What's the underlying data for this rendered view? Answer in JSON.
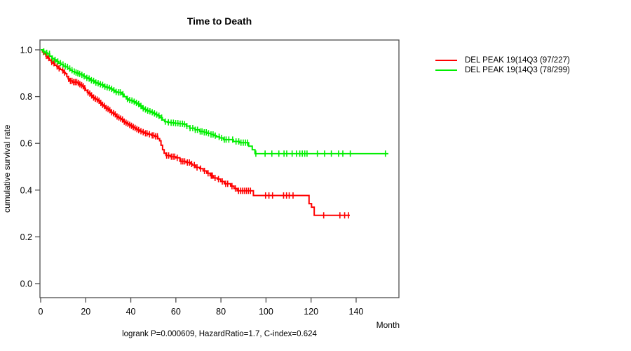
{
  "title": "Time to Death",
  "y_axis": {
    "label": "cumulative survival rate"
  },
  "x_axis": {
    "label": "Month"
  },
  "footer": "logrank P=0.000609, HazardRatio=1.7, C-index=0.624",
  "legend": [
    {
      "label": "DEL PEAK 19(14Q3 (97/227)",
      "color": "#ff0000"
    },
    {
      "label": "DEL PEAK 19(14Q3 (78/299)",
      "color": "#00ee00"
    }
  ],
  "colors": {
    "axis": "#4d4d4d",
    "text": "#000000",
    "background": "#ffffff"
  },
  "chart_data": {
    "type": "line",
    "subtype": "kaplan-meier-step",
    "title": "Time to Death",
    "xlabel": "Month",
    "ylabel": "cumulative survival rate",
    "xlim": [
      0,
      159
    ],
    "ylim": [
      0.0,
      1.0
    ],
    "x_ticks": [
      0,
      20,
      40,
      60,
      80,
      100,
      120,
      140
    ],
    "x_tick_labels": [
      "0",
      "20",
      "40",
      "60",
      "80",
      "100",
      "120",
      "140"
    ],
    "y_ticks": [
      0.0,
      0.2,
      0.4,
      0.6,
      0.8,
      1.0
    ],
    "y_tick_labels": [
      "0.0",
      "0.2",
      "0.4",
      "0.6",
      "0.8",
      "1.0"
    ],
    "grid": false,
    "legend_position": "right-outside",
    "annotations": [
      "logrank P=0.000609",
      "HazardRatio=1.7",
      "C-index=0.624"
    ],
    "series": [
      {
        "name": "DEL PEAK 19(14Q3 (97/227)",
        "events": 97,
        "n": 227,
        "color": "#ff0000",
        "end_month": 137.2,
        "steps": [
          [
            0,
            1.0
          ],
          [
            0.8,
            0.991
          ],
          [
            1.6,
            0.983
          ],
          [
            2.3,
            0.974
          ],
          [
            3.1,
            0.965
          ],
          [
            3.9,
            0.956
          ],
          [
            4.7,
            0.948
          ],
          [
            5.5,
            0.943
          ],
          [
            6.3,
            0.934
          ],
          [
            7.1,
            0.929
          ],
          [
            7.9,
            0.921
          ],
          [
            8.7,
            0.916
          ],
          [
            9.5,
            0.912
          ],
          [
            10.3,
            0.903
          ],
          [
            11,
            0.898
          ],
          [
            11.6,
            0.885
          ],
          [
            12.2,
            0.876
          ],
          [
            12.8,
            0.867
          ],
          [
            14,
            0.862
          ],
          [
            16.2,
            0.858
          ],
          [
            17,
            0.853
          ],
          [
            17.8,
            0.849
          ],
          [
            18.6,
            0.844
          ],
          [
            19.2,
            0.836
          ],
          [
            19.9,
            0.827
          ],
          [
            20.7,
            0.818
          ],
          [
            21.5,
            0.813
          ],
          [
            22.3,
            0.805
          ],
          [
            23.1,
            0.796
          ],
          [
            23.9,
            0.791
          ],
          [
            24.7,
            0.787
          ],
          [
            25.5,
            0.782
          ],
          [
            26.3,
            0.773
          ],
          [
            27.1,
            0.765
          ],
          [
            27.9,
            0.76
          ],
          [
            28.7,
            0.751
          ],
          [
            29.5,
            0.747
          ],
          [
            30.3,
            0.742
          ],
          [
            31.1,
            0.733
          ],
          [
            31.9,
            0.729
          ],
          [
            32.7,
            0.724
          ],
          [
            33.5,
            0.715
          ],
          [
            34.3,
            0.711
          ],
          [
            35.1,
            0.706
          ],
          [
            35.9,
            0.702
          ],
          [
            36.7,
            0.693
          ],
          [
            37.5,
            0.688
          ],
          [
            38.3,
            0.684
          ],
          [
            39.1,
            0.679
          ],
          [
            39.9,
            0.675
          ],
          [
            40.7,
            0.67
          ],
          [
            41.5,
            0.666
          ],
          [
            42.3,
            0.661
          ],
          [
            43.1,
            0.657
          ],
          [
            44.1,
            0.652
          ],
          [
            45.1,
            0.648
          ],
          [
            46.1,
            0.643
          ],
          [
            47.6,
            0.639
          ],
          [
            49.1,
            0.634
          ],
          [
            50.6,
            0.63
          ],
          [
            52,
            0.62
          ],
          [
            52.8,
            0.611
          ],
          [
            53.4,
            0.592
          ],
          [
            54.1,
            0.573
          ],
          [
            54.8,
            0.558
          ],
          [
            55.6,
            0.548
          ],
          [
            57.5,
            0.543
          ],
          [
            60,
            0.538
          ],
          [
            61.8,
            0.523
          ],
          [
            64.5,
            0.518
          ],
          [
            66.5,
            0.512
          ],
          [
            67.3,
            0.507
          ],
          [
            68.8,
            0.497
          ],
          [
            70.6,
            0.492
          ],
          [
            72.1,
            0.482
          ],
          [
            73.7,
            0.472
          ],
          [
            75.2,
            0.462
          ],
          [
            76.7,
            0.452
          ],
          [
            78.4,
            0.447
          ],
          [
            79.9,
            0.437
          ],
          [
            81.5,
            0.427
          ],
          [
            84.3,
            0.417
          ],
          [
            85.8,
            0.407
          ],
          [
            87.2,
            0.397
          ],
          [
            94.4,
            0.377
          ],
          [
            119.1,
            0.342
          ],
          [
            120.2,
            0.327
          ],
          [
            121.4,
            0.292
          ]
        ],
        "censor_months": [
          1.2,
          2.5,
          3.6,
          4.9,
          5.9,
          7.3,
          8.2,
          9.8,
          10.6,
          12.4,
          13.2,
          13.9,
          14.6,
          15.3,
          16,
          16.7,
          17.4,
          18.2,
          18.9,
          19.6,
          21,
          21.8,
          22.6,
          23.5,
          24.3,
          25.1,
          25.9,
          26.7,
          27.5,
          28.3,
          29.1,
          29.9,
          30.7,
          31.5,
          32.3,
          33.1,
          33.9,
          34.7,
          35.5,
          36.3,
          37.1,
          37.9,
          38.7,
          39.5,
          40.3,
          41.1,
          41.9,
          42.7,
          43.5,
          44.5,
          45.5,
          46.5,
          47.2,
          48.3,
          49.5,
          50.2,
          51,
          51.8,
          55.9,
          56.8,
          58,
          58.8,
          59.5,
          60.6,
          62.3,
          63.1,
          63.9,
          65.1,
          66,
          67,
          68.2,
          69.4,
          71,
          72.7,
          74.3,
          75.7,
          76.2,
          77.4,
          78.9,
          80.6,
          82.1,
          83,
          84.9,
          86.4,
          87.8,
          88.7,
          89.5,
          90.4,
          91.3,
          92.2,
          93.1,
          99.8,
          101.3,
          102.9,
          107.8,
          109.1,
          110.3,
          112,
          125.6,
          132.8,
          134.9,
          136.6
        ]
      },
      {
        "name": "DEL PEAK 19(14Q3 (78/299)",
        "events": 78,
        "n": 299,
        "color": "#00ee00",
        "end_month": 154.3,
        "steps": [
          [
            0,
            1.0
          ],
          [
            1,
            0.993
          ],
          [
            2,
            0.987
          ],
          [
            3,
            0.983
          ],
          [
            4,
            0.973
          ],
          [
            5,
            0.963
          ],
          [
            6,
            0.957
          ],
          [
            7,
            0.95
          ],
          [
            8,
            0.943
          ],
          [
            9,
            0.937
          ],
          [
            10,
            0.93
          ],
          [
            11,
            0.927
          ],
          [
            12,
            0.92
          ],
          [
            13,
            0.913
          ],
          [
            14,
            0.907
          ],
          [
            15,
            0.903
          ],
          [
            16,
            0.9
          ],
          [
            17,
            0.897
          ],
          [
            18,
            0.893
          ],
          [
            19,
            0.887
          ],
          [
            20,
            0.88
          ],
          [
            21,
            0.877
          ],
          [
            22,
            0.87
          ],
          [
            23,
            0.867
          ],
          [
            24,
            0.86
          ],
          [
            25,
            0.857
          ],
          [
            26,
            0.853
          ],
          [
            27,
            0.85
          ],
          [
            28,
            0.843
          ],
          [
            29,
            0.84
          ],
          [
            30,
            0.837
          ],
          [
            31,
            0.833
          ],
          [
            32,
            0.827
          ],
          [
            33,
            0.82
          ],
          [
            34,
            0.818
          ],
          [
            36,
            0.81
          ],
          [
            37,
            0.8
          ],
          [
            38,
            0.79
          ],
          [
            39,
            0.785
          ],
          [
            40,
            0.783
          ],
          [
            41,
            0.778
          ],
          [
            42,
            0.773
          ],
          [
            43,
            0.768
          ],
          [
            44,
            0.76
          ],
          [
            45,
            0.75
          ],
          [
            46,
            0.745
          ],
          [
            47,
            0.74
          ],
          [
            48,
            0.737
          ],
          [
            49,
            0.733
          ],
          [
            50,
            0.728
          ],
          [
            51,
            0.723
          ],
          [
            52,
            0.718
          ],
          [
            53,
            0.71
          ],
          [
            54,
            0.7
          ],
          [
            55,
            0.693
          ],
          [
            56.2,
            0.69
          ],
          [
            57.6,
            0.688
          ],
          [
            59.2,
            0.686
          ],
          [
            61.2,
            0.684
          ],
          [
            63.2,
            0.682
          ],
          [
            64.6,
            0.674
          ],
          [
            66.1,
            0.665
          ],
          [
            68.5,
            0.658
          ],
          [
            70.6,
            0.651
          ],
          [
            72.5,
            0.647
          ],
          [
            73.8,
            0.643
          ],
          [
            75.5,
            0.638
          ],
          [
            76.8,
            0.633
          ],
          [
            78.1,
            0.628
          ],
          [
            79.4,
            0.623
          ],
          [
            81.1,
            0.616
          ],
          [
            85.5,
            0.608
          ],
          [
            88.2,
            0.603
          ],
          [
            92.3,
            0.588
          ],
          [
            93.9,
            0.573
          ],
          [
            95.1,
            0.556
          ]
        ],
        "censor_months": [
          1.4,
          2.7,
          3.9,
          5.2,
          6.4,
          7.6,
          8.8,
          9.9,
          10.9,
          11.9,
          12.9,
          13.9,
          14.9,
          15.7,
          16.5,
          17.3,
          18.3,
          19.3,
          20.5,
          21.5,
          22.5,
          23.5,
          24.5,
          25.5,
          26.5,
          27.5,
          28.5,
          29.5,
          30.5,
          31.5,
          32.5,
          33.5,
          34.5,
          35.3,
          36.5,
          38.5,
          39.5,
          40.5,
          41.5,
          42.5,
          43.5,
          44.5,
          45.5,
          46.5,
          47.5,
          48.5,
          49.5,
          50.5,
          51.5,
          52.5,
          53.7,
          55.3,
          56.7,
          57.9,
          58.9,
          59.9,
          60.9,
          61.9,
          62.9,
          63.8,
          64.9,
          66.3,
          67.5,
          68.6,
          69.6,
          70.8,
          71.6,
          72.6,
          73.5,
          74.5,
          75.6,
          76.5,
          77.5,
          79.2,
          80.3,
          81.5,
          82.3,
          83.5,
          85.2,
          86.7,
          87.9,
          88.9,
          89.9,
          90.9,
          91.8,
          95.5,
          99.6,
          102.6,
          105.7,
          108,
          109.2,
          111.6,
          113.5,
          115,
          116.1,
          117.2,
          118.2,
          122.8,
          126,
          129,
          132.2,
          134.1,
          137.4,
          153
        ]
      }
    ]
  }
}
